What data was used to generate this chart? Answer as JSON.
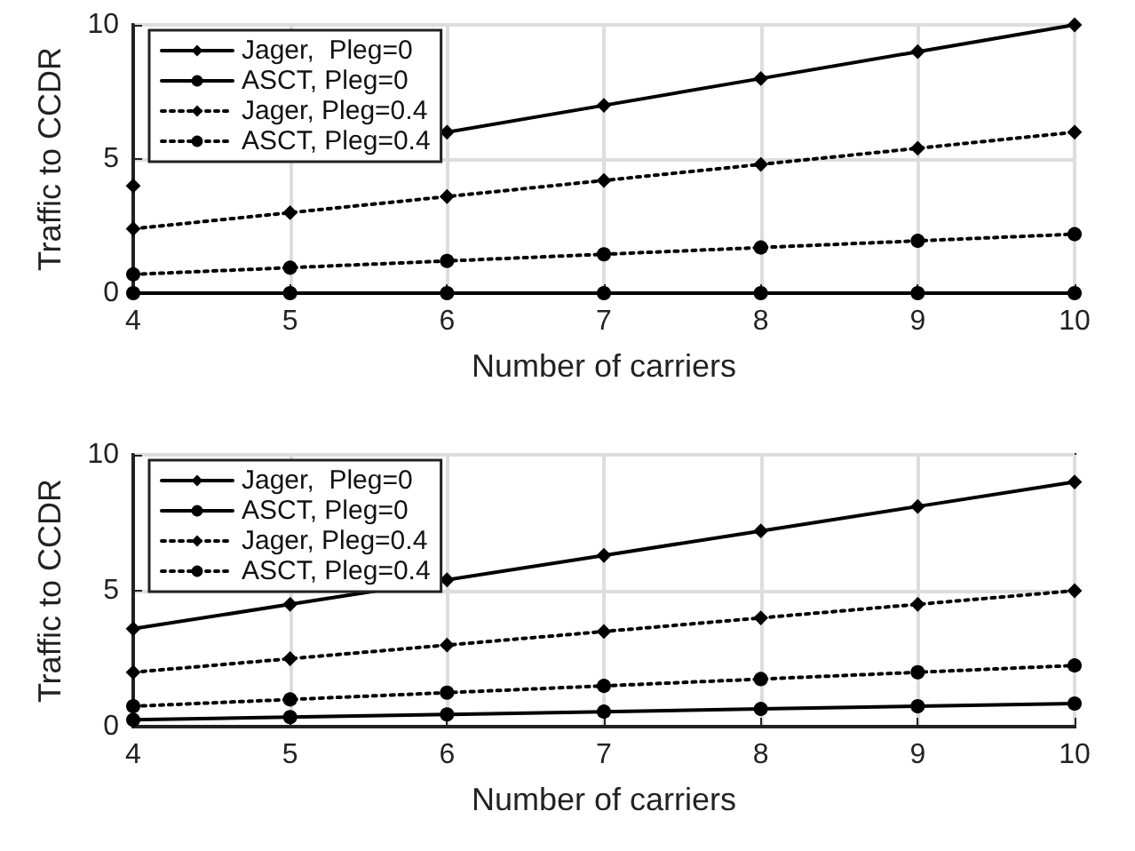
{
  "chart_data": [
    {
      "type": "line",
      "xlabel": "Number of carriers",
      "ylabel": "Traffic to CCDR",
      "x": [
        4,
        5,
        6,
        7,
        8,
        9,
        10
      ],
      "xlim": [
        4,
        10
      ],
      "xticks": [
        4,
        5,
        6,
        7,
        8,
        9,
        10
      ],
      "ylim": [
        0,
        10
      ],
      "yticks": [
        0,
        5,
        10
      ],
      "grid": true,
      "legend": "top left",
      "series": [
        {
          "name": "Jager,  Pleg=0",
          "color": "#000000",
          "marker": "diamond",
          "line_style": "solid",
          "values": [
            4,
            null,
            6,
            7,
            8,
            9,
            10
          ]
        },
        {
          "name": "ASCT, Pleg=0",
          "color": "#000000",
          "marker": "circle",
          "line_style": "solid",
          "values": [
            0,
            0,
            0,
            0,
            0,
            0,
            0
          ]
        },
        {
          "name": "Jager, Pleg=0.4",
          "color": "#000000",
          "marker": "diamond",
          "line_style": "dotted",
          "values": [
            2.4,
            3.0,
            3.6,
            4.2,
            4.8,
            5.4,
            6.0
          ]
        },
        {
          "name": "ASCT, Pleg=0.4",
          "color": "#000000",
          "marker": "circle",
          "line_style": "dotted",
          "values": [
            0.7,
            0.95,
            1.2,
            1.45,
            1.7,
            1.95,
            2.2
          ]
        }
      ]
    },
    {
      "type": "line",
      "xlabel": "Number of carriers",
      "ylabel": "Traffic to CCDR",
      "x": [
        4,
        5,
        6,
        7,
        8,
        9,
        10
      ],
      "xlim": [
        4,
        10
      ],
      "xticks": [
        4,
        5,
        6,
        7,
        8,
        9,
        10
      ],
      "ylim": [
        0,
        10
      ],
      "yticks": [
        0,
        5,
        10
      ],
      "grid": true,
      "legend": "top left",
      "series": [
        {
          "name": "Jager,  Pleg=0",
          "color": "#000000",
          "marker": "diamond",
          "line_style": "solid",
          "values": [
            3.6,
            4.5,
            5.4,
            6.3,
            7.2,
            8.1,
            9.0
          ]
        },
        {
          "name": "ASCT, Pleg=0",
          "color": "#000000",
          "marker": "circle",
          "line_style": "solid",
          "values": [
            0.25,
            0.35,
            0.45,
            0.55,
            0.65,
            0.75,
            0.85
          ]
        },
        {
          "name": "Jager, Pleg=0.4",
          "color": "#000000",
          "marker": "diamond",
          "line_style": "dotted",
          "values": [
            2.0,
            2.5,
            3.0,
            3.5,
            4.0,
            4.5,
            5.0
          ]
        },
        {
          "name": "ASCT, Pleg=0.4",
          "color": "#000000",
          "marker": "circle",
          "line_style": "dotted",
          "values": [
            0.75,
            1.0,
            1.25,
            1.5,
            1.75,
            2.0,
            2.25
          ]
        }
      ]
    }
  ]
}
